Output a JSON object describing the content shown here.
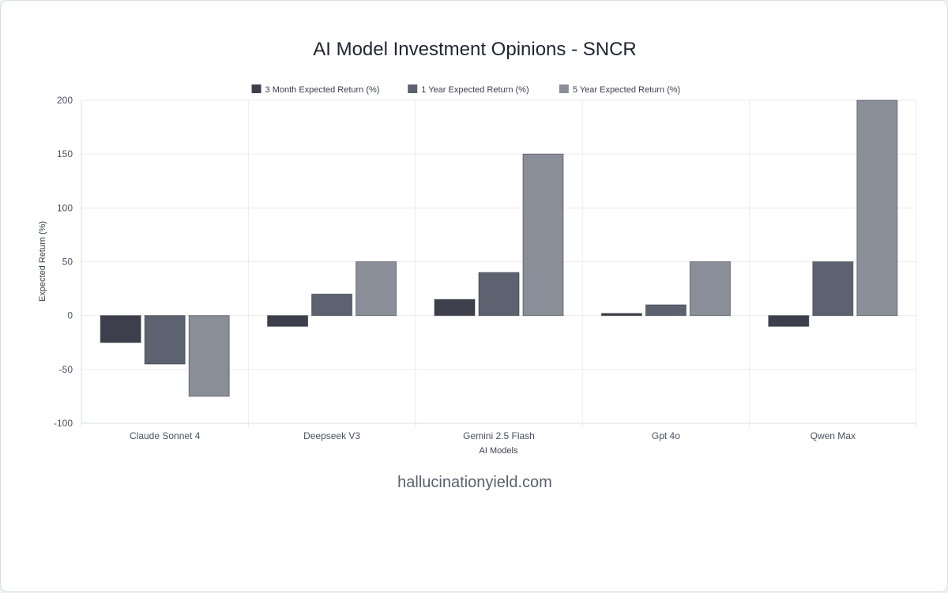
{
  "chart_data": {
    "type": "bar",
    "title": "AI Model Investment Opinions - SNCR",
    "xlabel": "AI Models",
    "ylabel": "Expected Return (%)",
    "ylim": [
      -100,
      200
    ],
    "yticks": [
      -100,
      -50,
      0,
      50,
      100,
      150,
      200
    ],
    "grid": true,
    "legend_position": "top-center",
    "categories": [
      "Claude Sonnet 4",
      "Deepseek V3",
      "Gemini 2.5 Flash",
      "Gpt 4o",
      "Qwen Max"
    ],
    "series": [
      {
        "name": "3 Month Expected Return (%)",
        "color": "#3d404c",
        "values": [
          -25,
          -10,
          15,
          2,
          -10
        ]
      },
      {
        "name": "1 Year Expected Return (%)",
        "color": "#5d6270",
        "values": [
          -45,
          20,
          40,
          10,
          50
        ]
      },
      {
        "name": "5 Year Expected Return (%)",
        "color": "#8a8e98",
        "values": [
          -75,
          50,
          150,
          50,
          200
        ]
      }
    ]
  },
  "watermark": "hallucinationyield.com"
}
